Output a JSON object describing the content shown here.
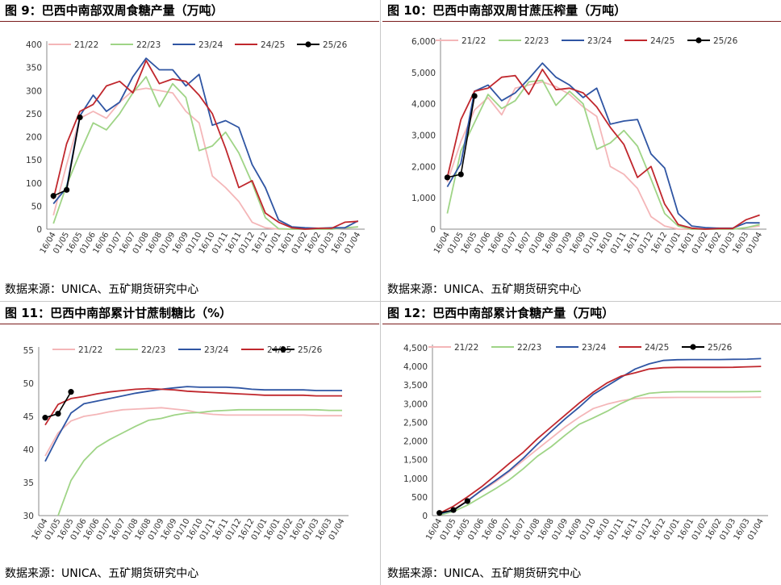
{
  "source_label": "数据来源：UNICA、五矿期货研究中心",
  "legend_names": [
    "21/22",
    "22/23",
    "23/24",
    "24/25",
    "25/26"
  ],
  "series_colors": [
    "#f4b6b8",
    "#9fd486",
    "#2f55a3",
    "#c0272d",
    "#000000"
  ],
  "charts": [
    {
      "title": "图 9：巴西中南部双周食糖产量（万吨）",
      "source": "数据来源：UNICA、五矿期货研究中心",
      "chart_data": {
        "type": "line",
        "categories": [
          "16/04",
          "01/05",
          "16/05",
          "01/06",
          "16/06",
          "01/07",
          "16/07",
          "01/08",
          "16/08",
          "01/09",
          "16/09",
          "01/10",
          "16/10",
          "01/11",
          "16/11",
          "01/12",
          "16/12",
          "01/01",
          "16/01",
          "01/02",
          "16/02",
          "01/03",
          "16/03",
          "01/04"
        ],
        "x_tick_labels": [
          "16/04",
          "01/05",
          "16/05",
          "01/06",
          "16/06",
          "01/07",
          "16/07",
          "01/08",
          "16/08",
          "01/09",
          "16/09",
          "01/10",
          "16/10",
          "01/11",
          "16/11",
          "01/12",
          "16/12",
          "01/01",
          "16/01",
          "01/02",
          "16/02",
          "01/03",
          "16/03",
          "01/04"
        ],
        "y_ticks": [
          "0",
          "50",
          "100",
          "150",
          "200",
          "250",
          "300",
          "350",
          "400"
        ],
        "ylim": [
          0,
          400
        ],
        "series": [
          {
            "name": "21/22",
            "values": [
              30,
              140,
              240,
              255,
              240,
              275,
              300,
              305,
              300,
              295,
              255,
              230,
              115,
              90,
              60,
              15,
              3,
              0,
              0,
              0,
              0,
              0,
              2,
              5
            ]
          },
          {
            "name": "22/23",
            "values": [
              12,
              95,
              165,
              230,
              215,
              250,
              295,
              330,
              265,
              315,
              285,
              170,
              180,
              210,
              165,
              100,
              25,
              1,
              0,
              0,
              0,
              0,
              3,
              5
            ]
          },
          {
            "name": "23/24",
            "values": [
              55,
              90,
              245,
              290,
              255,
              275,
              330,
              370,
              345,
              345,
              310,
              335,
              225,
              235,
              220,
              140,
              90,
              20,
              5,
              3,
              2,
              3,
              3,
              18
            ]
          },
          {
            "name": "24/25",
            "values": [
              65,
              185,
              255,
              270,
              310,
              320,
              295,
              365,
              315,
              325,
              320,
              290,
              250,
              175,
              90,
              105,
              35,
              15,
              3,
              0,
              2,
              2,
              15,
              17
            ]
          },
          {
            "name": "25/26",
            "values": [
              72,
              85,
              242,
              null,
              null,
              null,
              null,
              null,
              null,
              null,
              null,
              null,
              null,
              null,
              null,
              null,
              null,
              null,
              null,
              null,
              null,
              null,
              null,
              null
            ]
          }
        ]
      }
    },
    {
      "title": "图 10：巴西中南部双周甘蔗压榨量（万吨）",
      "source": "数据来源：UNICA、五矿期货研究中心",
      "chart_data": {
        "type": "line",
        "categories": [
          "16/04",
          "01/05",
          "16/05",
          "01/06",
          "16/06",
          "01/07",
          "16/07",
          "01/08",
          "16/08",
          "01/09",
          "16/09",
          "01/10",
          "16/10",
          "01/11",
          "16/11",
          "01/12",
          "16/12",
          "01/01",
          "16/01",
          "01/02",
          "16/02",
          "01/03",
          "16/03",
          "01/04"
        ],
        "x_tick_labels": [
          "16/04",
          "01/05",
          "16/05",
          "01/06",
          "16/06",
          "01/07",
          "16/07",
          "01/08",
          "16/08",
          "01/09",
          "16/09",
          "01/10",
          "16/10",
          "01/11",
          "16/11",
          "01/12",
          "16/12",
          "01/01",
          "16/01",
          "01/02",
          "16/02",
          "01/03",
          "16/03",
          "01/04"
        ],
        "y_ticks": [
          "0",
          "1,000",
          "2,000",
          "3,000",
          "4,000",
          "5,000",
          "6,000"
        ],
        "ylim": [
          0,
          6000
        ],
        "series": [
          {
            "name": "21/22",
            "values": [
              1500,
              2800,
              3800,
              4200,
              3650,
              4500,
              4600,
              4700,
              4550,
              4300,
              3900,
              3600,
              2000,
              1750,
              1300,
              400,
              100,
              0,
              0,
              0,
              0,
              0,
              50,
              100
            ]
          },
          {
            "name": "22/23",
            "values": [
              500,
              2500,
              3400,
              4300,
              3850,
              4100,
              4700,
              4750,
              3950,
              4400,
              4000,
              2550,
              2750,
              3150,
              2650,
              1600,
              500,
              100,
              0,
              0,
              0,
              0,
              50,
              150
            ]
          },
          {
            "name": "23/24",
            "values": [
              1350,
              2100,
              4400,
              4600,
              4100,
              4350,
              4800,
              5300,
              4850,
              4600,
              4200,
              4500,
              3350,
              3450,
              3500,
              2400,
              1950,
              500,
              100,
              50,
              30,
              30,
              200,
              200
            ]
          },
          {
            "name": "24/25",
            "values": [
              1650,
              3500,
              4400,
              4500,
              4850,
              4900,
              4300,
              5100,
              4450,
              4500,
              4350,
              3900,
              3250,
              2700,
              1650,
              2000,
              800,
              150,
              30,
              0,
              20,
              20,
              300,
              450
            ]
          },
          {
            "name": "25/26",
            "values": [
              1650,
              1750,
              4250,
              null,
              null,
              null,
              null,
              null,
              null,
              null,
              null,
              null,
              null,
              null,
              null,
              null,
              null,
              null,
              null,
              null,
              null,
              null,
              null,
              null
            ]
          }
        ]
      }
    },
    {
      "title": "图 11：巴西中南部累计甘蔗制糖比（%）",
      "source": "数据来源：UNICA、五矿期货研究中心",
      "chart_data": {
        "type": "line",
        "categories": [
          "16/04",
          "01/05",
          "16/05",
          "01/06",
          "16/06",
          "01/07",
          "16/07",
          "01/08",
          "16/08",
          "01/09",
          "16/09",
          "01/10",
          "16/10",
          "01/11",
          "16/11",
          "01/12",
          "16/12",
          "01/01",
          "16/01",
          "01/02",
          "16/02",
          "01/03",
          "16/03",
          "01/04"
        ],
        "x_tick_labels": [
          "16/04",
          "01/05",
          "16/05",
          "01/06",
          "16/06",
          "01/07",
          "16/07",
          "01/08",
          "16/08",
          "01/09",
          "16/09",
          "01/10",
          "16/10",
          "01/11",
          "16/11",
          "01/12",
          "16/12",
          "01/01",
          "16/01",
          "01/02",
          "16/02",
          "01/03",
          "16/03",
          "01/04"
        ],
        "y_ticks": [
          "30",
          "35",
          "40",
          "45",
          "50",
          "55"
        ],
        "ylim": [
          30,
          55
        ],
        "series": [
          {
            "name": "21/22",
            "values": [
              39,
              42.5,
              44.3,
              45,
              45.3,
              45.7,
              46,
              46.1,
              46.2,
              46.3,
              46.1,
              45.9,
              45.5,
              45.3,
              45.2,
              45.2,
              45.2,
              45.2,
              45.2,
              45.2,
              45.2,
              45.1,
              45.1,
              45.1
            ]
          },
          {
            "name": "22/23",
            "values": [
              null,
              30,
              35.3,
              38.3,
              40.3,
              41.5,
              42.5,
              43.5,
              44.4,
              44.7,
              45.2,
              45.5,
              45.6,
              45.8,
              45.9,
              46,
              46,
              46,
              46,
              46,
              46,
              46,
              45.9,
              45.9
            ]
          },
          {
            "name": "23/24",
            "values": [
              38.2,
              42,
              45.5,
              46.9,
              47.3,
              47.7,
              48.1,
              48.5,
              48.8,
              49.1,
              49.3,
              49.5,
              49.4,
              49.4,
              49.4,
              49.3,
              49.1,
              49,
              49,
              49,
              49,
              48.9,
              48.9,
              48.9
            ]
          },
          {
            "name": "24/25",
            "values": [
              43.7,
              46.8,
              47.7,
              48,
              48.4,
              48.7,
              48.9,
              49.1,
              49.2,
              49.1,
              49,
              48.8,
              48.7,
              48.6,
              48.5,
              48.4,
              48.3,
              48.2,
              48.2,
              48.2,
              48.2,
              48.1,
              48.1,
              48.1
            ]
          },
          {
            "name": "25/26",
            "values": [
              44.8,
              45.4,
              48.7,
              null,
              null,
              null,
              null,
              null,
              null,
              null,
              null,
              null,
              null,
              null,
              null,
              null,
              null,
              null,
              null,
              null,
              null,
              null,
              null,
              null
            ]
          }
        ]
      }
    },
    {
      "title": "图 12：巴西中南部累计食糖产量（万吨）",
      "source": "数据来源：UNICA、五矿期货研究中心",
      "chart_data": {
        "type": "line",
        "categories": [
          "16/04",
          "01/05",
          "16/05",
          "01/06",
          "16/06",
          "01/07",
          "16/07",
          "01/08",
          "16/08",
          "01/09",
          "16/09",
          "01/10",
          "16/10",
          "01/11",
          "16/11",
          "01/12",
          "16/12",
          "01/01",
          "16/01",
          "01/02",
          "16/02",
          "01/03",
          "16/03",
          "01/04"
        ],
        "x_tick_labels": [
          "16/04",
          "01/05",
          "16/05",
          "01/06",
          "16/06",
          "01/07",
          "16/07",
          "01/08",
          "16/08",
          "01/09",
          "16/09",
          "01/10",
          "16/10",
          "01/11",
          "16/11",
          "01/12",
          "16/12",
          "01/01",
          "16/01",
          "01/02",
          "16/02",
          "01/03",
          "16/03",
          "01/04"
        ],
        "y_ticks": [
          "0",
          "500",
          "1,000",
          "1,500",
          "2,000",
          "2,500",
          "3,000",
          "3,500",
          "4,000",
          "4,500"
        ],
        "ylim": [
          0,
          4500
        ],
        "series": [
          {
            "name": "21/22",
            "values": [
              30,
              170,
              410,
              660,
              900,
              1180,
              1480,
              1780,
              2080,
              2380,
              2640,
              2870,
              2990,
              3080,
              3140,
              3160,
              3165,
              3170,
              3170,
              3170,
              3170,
              3170,
              3172,
              3177
            ]
          },
          {
            "name": "22/23",
            "values": [
              12,
              110,
              280,
              500,
              720,
              960,
              1260,
              1590,
              1850,
              2160,
              2450,
              2620,
              2800,
              3010,
              3180,
              3280,
              3310,
              3320,
              3320,
              3320,
              3320,
              3320,
              3323,
              3330
            ]
          },
          {
            "name": "23/24",
            "values": [
              50,
              140,
              390,
              680,
              940,
              1210,
              1540,
              1910,
              2260,
              2600,
              2910,
              3250,
              3480,
              3710,
              3930,
              4070,
              4160,
              4180,
              4185,
              4185,
              4185,
              4190,
              4195,
              4210
            ]
          },
          {
            "name": "24/25",
            "values": [
              60,
              250,
              500,
              770,
              1080,
              1400,
              1700,
              2060,
              2380,
              2700,
              3020,
              3310,
              3560,
              3740,
              3830,
              3930,
              3965,
              3975,
              3975,
              3975,
              3975,
              3977,
              3990,
              4000
            ]
          },
          {
            "name": "25/26",
            "values": [
              72,
              150,
              390,
              null,
              null,
              null,
              null,
              null,
              null,
              null,
              null,
              null,
              null,
              null,
              null,
              null,
              null,
              null,
              null,
              null,
              null,
              null,
              null,
              null
            ]
          }
        ]
      }
    }
  ]
}
